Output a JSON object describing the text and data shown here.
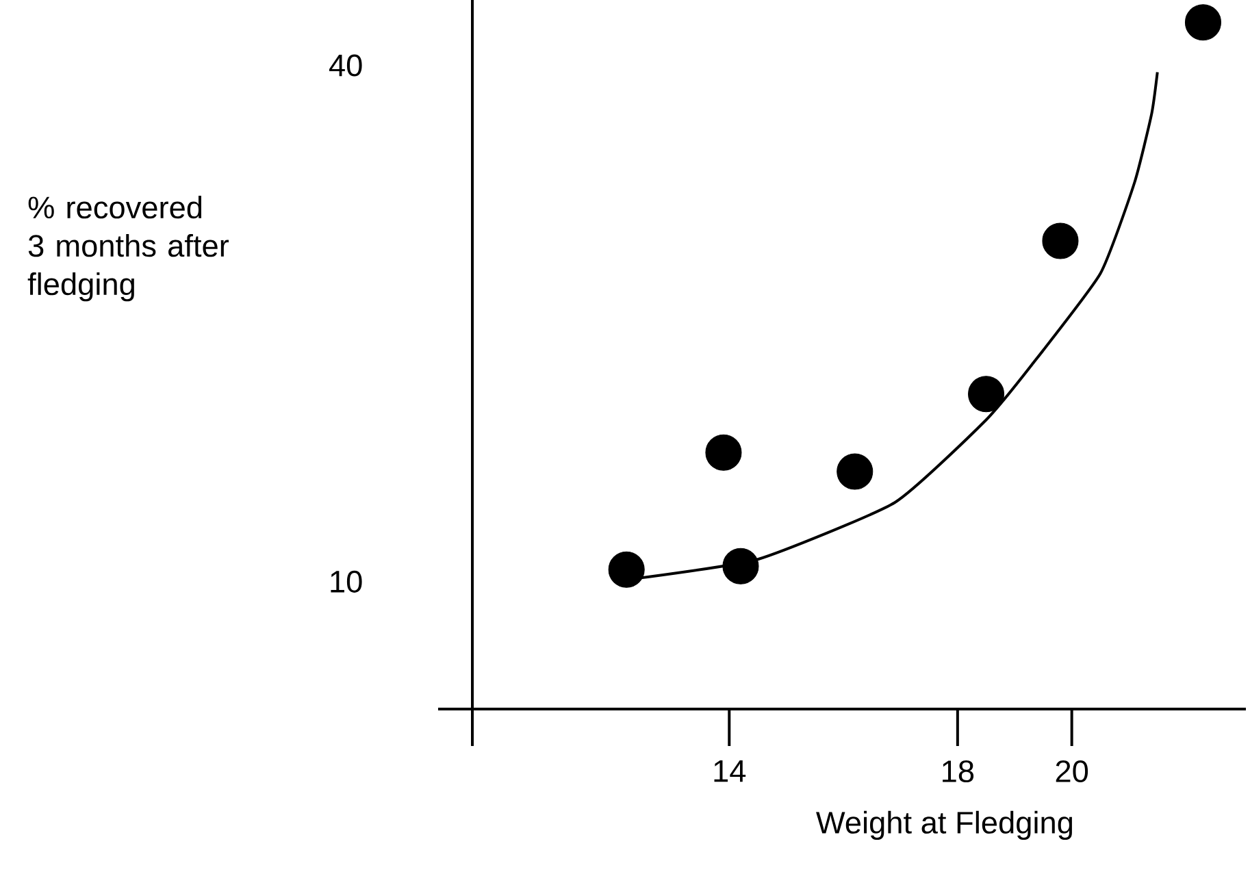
{
  "chart_data": {
    "type": "scatter",
    "xlabel": "Weight at Fledging",
    "ylabel": "% recovered 3 months after fledging",
    "xlim": [
      9.5,
      23.05
    ],
    "ylim": [
      2.6,
      43.8
    ],
    "xticks": [
      14,
      18,
      20
    ],
    "yticks": [
      10,
      40
    ],
    "marker": "circle",
    "series": [
      {
        "color": "#000000",
        "x": [
          12.2,
          13.9,
          14.2,
          16.2,
          18.5,
          19.8,
          22.3
        ],
        "values": [
          10.7,
          17.5,
          10.9,
          16.4,
          20.9,
          29.8,
          42.5
        ]
      },
      {
        "type": "line",
        "color": "#000000",
        "marker": "none",
        "x": [
          12.4,
          14.5,
          16.9,
          18.5,
          19.3,
          20.5,
          21.1,
          21.4,
          21.5
        ],
        "values": [
          10.2,
          11.3,
          14.6,
          19.4,
          22.6,
          27.9,
          33.2,
          37.2,
          39.6
        ]
      }
    ]
  }
}
